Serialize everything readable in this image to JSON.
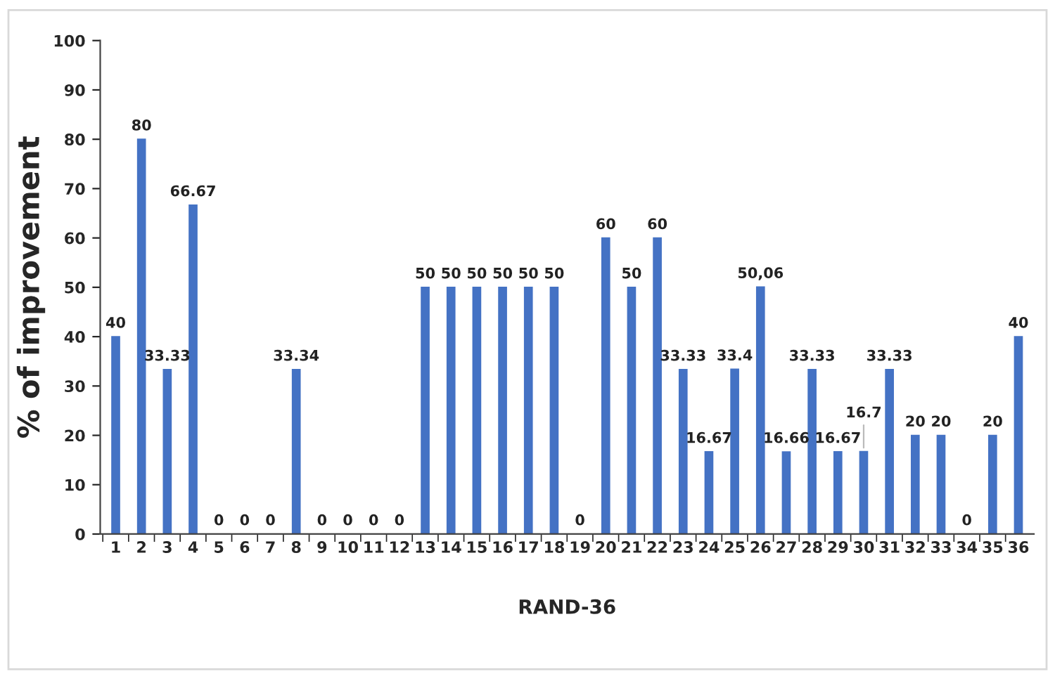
{
  "chart_data": {
    "type": "bar",
    "xlabel": "RAND-36",
    "ylabel": "% of improvement",
    "categories": [
      "1",
      "2",
      "3",
      "4",
      "5",
      "6",
      "7",
      "8",
      "9",
      "10",
      "11",
      "12",
      "13",
      "14",
      "15",
      "16",
      "17",
      "18",
      "19",
      "20",
      "21",
      "22",
      "23",
      "24",
      "25",
      "26",
      "27",
      "28",
      "29",
      "30",
      "31",
      "32",
      "33",
      "34",
      "35",
      "36"
    ],
    "values": [
      40,
      80,
      33.33,
      66.67,
      0,
      0,
      0,
      33.34,
      0,
      0,
      0,
      0,
      50,
      50,
      50,
      50,
      50,
      50,
      0,
      60,
      50,
      60,
      33.33,
      16.67,
      33.4,
      50.06,
      16.66,
      33.33,
      16.67,
      16.7,
      33.33,
      20,
      20,
      0,
      20,
      40
    ],
    "value_labels": [
      "40",
      "80",
      "33.33",
      "66.67",
      "0",
      "0",
      "0",
      "33.34",
      "0",
      "0",
      "0",
      "0",
      "50",
      "50",
      "50",
      "50",
      "50",
      "50",
      "0",
      "60",
      "50",
      "60",
      "33.33",
      "16.67",
      "33.4",
      "50,06",
      "16.66",
      "33.33",
      "16.67",
      "16.7",
      "33.33",
      "20",
      "20",
      "0",
      "20",
      "40"
    ],
    "color": "#4472c4",
    "ylim": [
      0,
      100
    ],
    "yticks": [
      0,
      10,
      20,
      30,
      40,
      50,
      60,
      70,
      80,
      90,
      100
    ],
    "grid": false,
    "legend": false
  }
}
